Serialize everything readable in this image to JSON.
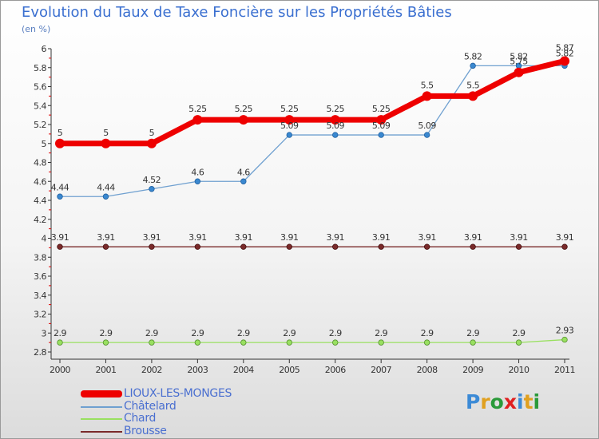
{
  "title": "Evolution du Taux de Taxe Foncière sur les Propriétés Bâties",
  "subtitle": "(en %)",
  "logo": {
    "text": "Proxiti",
    "colors": [
      "#3b8ad6",
      "#e0a020",
      "#2a9a3a",
      "#e02020",
      "#3b8ad6",
      "#e0a020",
      "#2a9a3a"
    ]
  },
  "chart_data": {
    "type": "line",
    "x": [
      "2000",
      "2001",
      "2002",
      "2003",
      "2004",
      "2005",
      "2006",
      "2007",
      "2008",
      "2009",
      "2010",
      "2011"
    ],
    "yticks": [
      "2.8",
      "3",
      "3.2",
      "3.4",
      "3.6",
      "3.8",
      "4",
      "4.2",
      "4.4",
      "4.6",
      "4.8",
      "5",
      "5.2",
      "5.4",
      "5.6",
      "5.8",
      "6"
    ],
    "ylim": [
      2.8,
      6
    ],
    "grid": false,
    "series": [
      {
        "name": "LIOUX-LES-MONGES",
        "color": "#ee0000",
        "values": [
          5,
          5,
          5,
          5.25,
          5.25,
          5.25,
          5.25,
          5.25,
          5.5,
          5.5,
          5.75,
          5.87
        ],
        "labels": [
          "5",
          "5",
          "5",
          "5.25",
          "5.25",
          "5.25",
          "5.25",
          "5.25",
          "5.5",
          "5.5",
          "5.75",
          "5.87"
        ]
      },
      {
        "name": "Châtelard",
        "color": "#6fa0d0",
        "values": [
          4.44,
          4.44,
          4.52,
          4.6,
          4.6,
          5.09,
          5.09,
          5.09,
          5.09,
          5.82,
          5.82,
          5.82
        ],
        "labels": [
          "4.44",
          "4.44",
          "4.52",
          "4.6",
          "4.6",
          "5.09",
          "5.09",
          "5.09",
          "5.09",
          "5.82",
          "5.82",
          "5.82"
        ]
      },
      {
        "name": "Chard",
        "color": "#99e060",
        "values": [
          2.9,
          2.9,
          2.9,
          2.9,
          2.9,
          2.9,
          2.9,
          2.9,
          2.9,
          2.9,
          2.9,
          2.93
        ],
        "labels": [
          "2.9",
          "2.9",
          "2.9",
          "2.9",
          "2.9",
          "2.9",
          "2.9",
          "2.9",
          "2.9",
          "2.9",
          "2.9",
          "2.93"
        ]
      },
      {
        "name": "Brousse",
        "color": "#7a2a2a",
        "values": [
          3.91,
          3.91,
          3.91,
          3.91,
          3.91,
          3.91,
          3.91,
          3.91,
          3.91,
          3.91,
          3.91,
          3.91
        ],
        "labels": [
          "3.91",
          "3.91",
          "3.91",
          "3.91",
          "3.91",
          "3.91",
          "3.91",
          "3.91",
          "3.91",
          "3.91",
          "3.91",
          "3.91"
        ]
      }
    ],
    "legend": "bottom-left"
  }
}
